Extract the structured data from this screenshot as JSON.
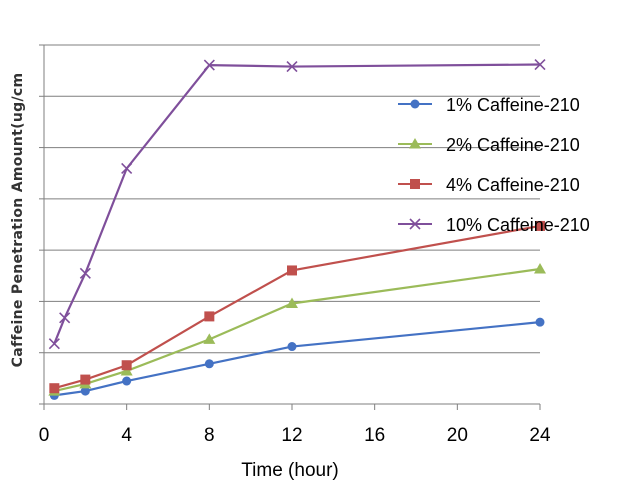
{
  "chart_data": {
    "type": "line",
    "title": "",
    "xlabel": "Time (hour)",
    "ylabel": "Caffeine  Penetration Amount(ug/cm",
    "x_ticks": [
      0,
      4,
      8,
      12,
      16,
      20,
      24
    ],
    "y_gridlines": 7,
    "grid": "horizontal",
    "legend_position": "right",
    "series": [
      {
        "name": "1% Caffeine-210",
        "color": "#4472C4",
        "marker": "circle",
        "points": [
          [
            0.5,
            0.3
          ],
          [
            2,
            0.45
          ],
          [
            4,
            0.8
          ],
          [
            8,
            1.4
          ],
          [
            12,
            2.0
          ],
          [
            24,
            2.85
          ]
        ]
      },
      {
        "name": "2% Caffeine-210",
        "color": "#9BBB59",
        "marker": "triangle",
        "points": [
          [
            0.5,
            0.45
          ],
          [
            2,
            0.7
          ],
          [
            4,
            1.15
          ],
          [
            8,
            2.25
          ],
          [
            12,
            3.5
          ],
          [
            24,
            4.7
          ]
        ]
      },
      {
        "name": "4% Caffeine-210",
        "color": "#C0504D",
        "marker": "square",
        "points": [
          [
            0.5,
            0.55
          ],
          [
            2,
            0.85
          ],
          [
            4,
            1.35
          ],
          [
            8,
            3.05
          ],
          [
            12,
            4.65
          ],
          [
            24,
            6.2
          ]
        ]
      },
      {
        "name": "10% Caffeine-210",
        "color": "#7F4F9B",
        "marker": "x",
        "points": [
          [
            0.5,
            2.1
          ],
          [
            1,
            3.0
          ],
          [
            2,
            4.55
          ],
          [
            4,
            8.2
          ],
          [
            8,
            11.8
          ],
          [
            12,
            11.75
          ],
          [
            24,
            11.82
          ]
        ]
      }
    ]
  }
}
